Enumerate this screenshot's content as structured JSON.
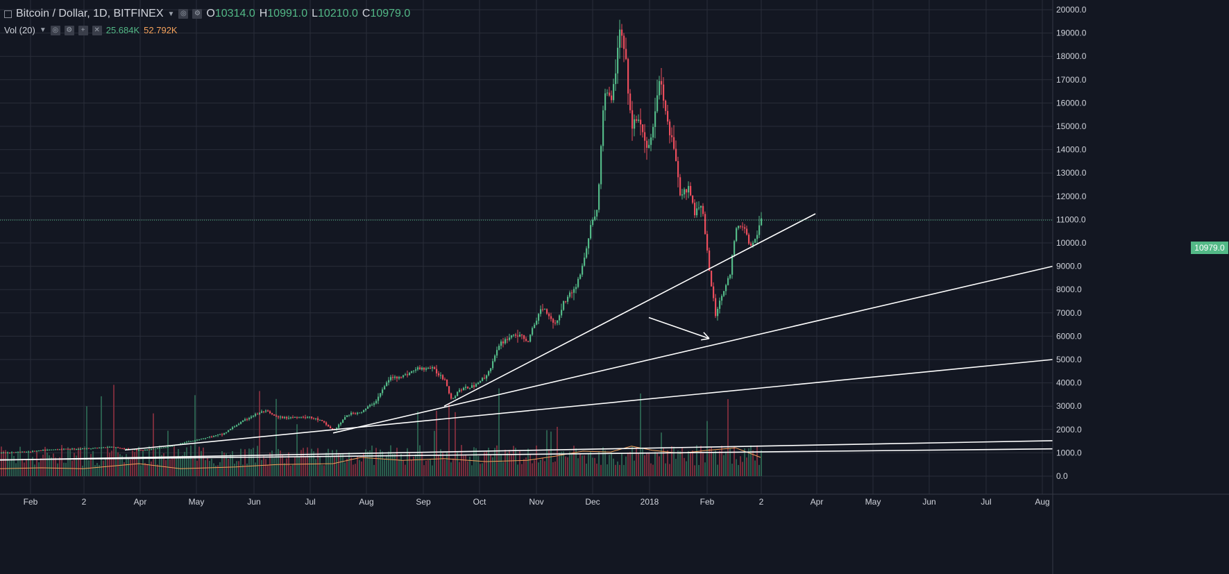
{
  "header": {
    "symbol": "Bitcoin / Dollar, 1D, BITFINEX",
    "open_label": "O",
    "open": "10314.0",
    "high_label": "H",
    "high": "10991.0",
    "low_label": "L",
    "low": "10210.0",
    "close_label": "C",
    "close": "10979.0"
  },
  "volume_indicator": {
    "label": "Vol (20)",
    "value": "25.684K",
    "ma": "52.792K"
  },
  "last_price_tag": "10979.0",
  "colors": {
    "background": "#131722",
    "up": "#53b987",
    "down": "#eb4d5c",
    "volume_ma": "#f7a35c",
    "trendline": "#ffffff",
    "grid": "#2a2e39"
  },
  "chart_data": {
    "type": "candlestick",
    "title": "Bitcoin / Dollar, 1D, BITFINEX",
    "y_ticks": [
      "20000.0",
      "19000.0",
      "18000.0",
      "17000.0",
      "16000.0",
      "15000.0",
      "14000.0",
      "13000.0",
      "12000.0",
      "11000.0",
      "10000.0",
      "9000.0",
      "8000.0",
      "7000.0",
      "6000.0",
      "5000.0",
      "4000.0",
      "3000.0",
      "2000.0",
      "1000.0",
      "0.0"
    ],
    "x_ticks": [
      "Feb",
      "2",
      "Apr",
      "May",
      "Jun",
      "Jul",
      "Aug",
      "Sep",
      "Oct",
      "Nov",
      "Dec",
      "2018",
      "Feb",
      "2",
      "Apr",
      "May",
      "Jun",
      "Jul",
      "Aug"
    ],
    "ylim": [
      0,
      20000
    ],
    "last_close": 10979.0,
    "price_path": [
      [
        0,
        1000
      ],
      [
        40,
        1050
      ],
      [
        80,
        1150
      ],
      [
        120,
        1180
      ],
      [
        160,
        1250
      ],
      [
        200,
        1100
      ],
      [
        240,
        1250
      ],
      [
        280,
        1550
      ],
      [
        320,
        1800
      ],
      [
        340,
        2200
      ],
      [
        360,
        2550
      ],
      [
        380,
        2800
      ],
      [
        400,
        2500
      ],
      [
        440,
        2550
      ],
      [
        460,
        2400
      ],
      [
        480,
        1950
      ],
      [
        500,
        2650
      ],
      [
        520,
        2750
      ],
      [
        540,
        3200
      ],
      [
        560,
        4200
      ],
      [
        580,
        4300
      ],
      [
        600,
        4600
      ],
      [
        620,
        4650
      ],
      [
        640,
        4150
      ],
      [
        650,
        3250
      ],
      [
        660,
        3700
      ],
      [
        680,
        3850
      ],
      [
        700,
        4300
      ],
      [
        720,
        5700
      ],
      [
        740,
        6100
      ],
      [
        760,
        5800
      ],
      [
        780,
        7300
      ],
      [
        800,
        6500
      ],
      [
        810,
        7400
      ],
      [
        830,
        8200
      ],
      [
        840,
        9200
      ],
      [
        850,
        10700
      ],
      [
        860,
        11500
      ],
      [
        870,
        16700
      ],
      [
        880,
        16000
      ],
      [
        893,
        19200
      ],
      [
        900,
        17800
      ],
      [
        910,
        14800
      ],
      [
        920,
        15500
      ],
      [
        930,
        13800
      ],
      [
        940,
        15000
      ],
      [
        950,
        17100
      ],
      [
        960,
        15200
      ],
      [
        970,
        14000
      ],
      [
        980,
        11800
      ],
      [
        990,
        12600
      ],
      [
        1000,
        11300
      ],
      [
        1010,
        11800
      ],
      [
        1020,
        9000
      ],
      [
        1030,
        6900
      ],
      [
        1040,
        7900
      ],
      [
        1050,
        8500
      ],
      [
        1060,
        10600
      ],
      [
        1070,
        10800
      ],
      [
        1080,
        9800
      ],
      [
        1090,
        10300
      ],
      [
        1096,
        10979
      ]
    ],
    "volume_ma_path": [
      [
        0,
        0.18
      ],
      [
        60,
        0.2
      ],
      [
        120,
        0.18
      ],
      [
        200,
        0.3
      ],
      [
        260,
        0.18
      ],
      [
        340,
        0.22
      ],
      [
        400,
        0.28
      ],
      [
        480,
        0.3
      ],
      [
        520,
        0.45
      ],
      [
        580,
        0.38
      ],
      [
        640,
        0.42
      ],
      [
        700,
        0.35
      ],
      [
        760,
        0.38
      ],
      [
        800,
        0.48
      ],
      [
        840,
        0.6
      ],
      [
        880,
        0.58
      ],
      [
        910,
        0.72
      ],
      [
        940,
        0.62
      ],
      [
        980,
        0.55
      ],
      [
        1020,
        0.62
      ],
      [
        1060,
        0.68
      ],
      [
        1096,
        0.45
      ]
    ],
    "trendlines": [
      {
        "from": [
          0,
          690
        ],
        "to": [
          1517,
          1520
        ]
      },
      {
        "from": [
          0,
          700
        ],
        "to": [
          1517,
          1170
        ]
      },
      {
        "from": [
          180,
          1120
        ],
        "to": [
          1517,
          5000
        ]
      },
      {
        "from": [
          480,
          1850
        ],
        "to": [
          1517,
          9000
        ]
      },
      {
        "from": [
          640,
          3000
        ],
        "to": [
          1175,
          11250
        ]
      }
    ],
    "arrow": {
      "from": [
        935,
        6800
      ],
      "to": [
        1022,
        5900
      ]
    }
  }
}
